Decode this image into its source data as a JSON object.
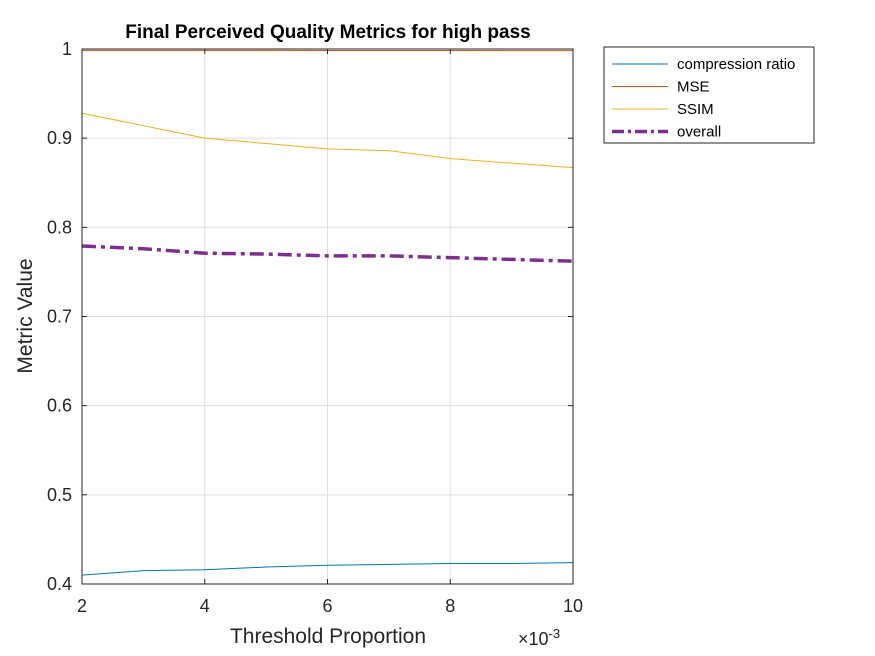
{
  "chart_data": {
    "type": "line",
    "title": "Final Perceived Quality Metrics for high pass",
    "xlabel": "Threshold Proportion",
    "ylabel": "Metric Value",
    "x_exponent_label": "×10",
    "x_exponent_power": "-3",
    "x_scale": 0.001,
    "xlim": [
      0.002,
      0.01
    ],
    "ylim": [
      0.4,
      1.0
    ],
    "x_ticks": [
      2,
      4,
      6,
      8,
      10
    ],
    "y_ticks": [
      0.4,
      0.5,
      0.6,
      0.7,
      0.8,
      0.9,
      1
    ],
    "grid": true,
    "legend_position": "outside-top-right",
    "x": [
      0.002,
      0.003,
      0.004,
      0.005,
      0.006,
      0.007,
      0.008,
      0.009,
      0.01
    ],
    "series": [
      {
        "name": "compression ratio",
        "color": "#0072BD",
        "style": "solid",
        "values": [
          0.41,
          0.415,
          0.416,
          0.419,
          0.421,
          0.422,
          0.423,
          0.423,
          0.424
        ]
      },
      {
        "name": "MSE",
        "color": "#D95319",
        "style": "solid",
        "values": [
          0.9985,
          0.9985,
          0.9984,
          0.9984,
          0.9983,
          0.9983,
          0.9983,
          0.9982,
          0.9982
        ]
      },
      {
        "name": "SSIM",
        "color": "#EDB120",
        "style": "solid",
        "values": [
          0.928,
          0.914,
          0.9,
          0.894,
          0.888,
          0.886,
          0.877,
          0.872,
          0.867
        ]
      },
      {
        "name": "overall",
        "color": "#7E2F8E",
        "style": "dashdot",
        "values": [
          0.779,
          0.776,
          0.771,
          0.77,
          0.768,
          0.768,
          0.766,
          0.764,
          0.762
        ]
      }
    ]
  }
}
